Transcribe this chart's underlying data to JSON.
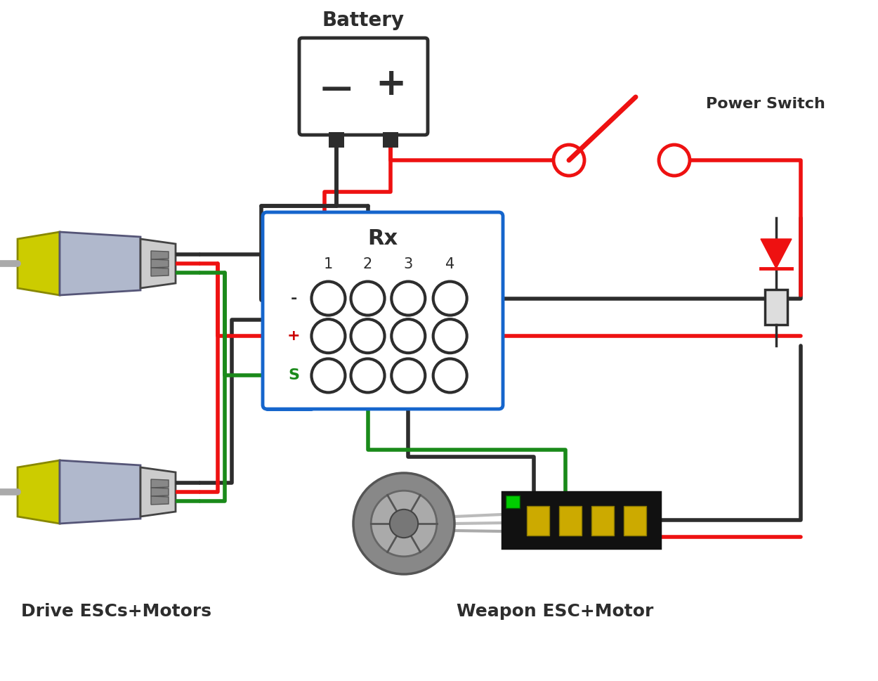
{
  "bg": "#ffffff",
  "dark": "#2d2d2d",
  "red": "#ee1111",
  "green": "#1a8a1a",
  "blue": "#1565cc",
  "lw": 4.0,
  "battery_label": "Battery",
  "power_switch_label": "Power Switch",
  "drive_label": "Drive ESCs+Motors",
  "weapon_label": "Weapon ESC+Motor",
  "rx_label": "Rx",
  "rx_rows": [
    "-",
    "+",
    "S"
  ],
  "rx_row_colors": [
    "#2d2d2d",
    "#cc0000",
    "#1a8a1a"
  ],
  "rx_cols": [
    "1",
    "2",
    "3",
    "4"
  ],
  "fig_w": 12.5,
  "fig_h": 9.69
}
